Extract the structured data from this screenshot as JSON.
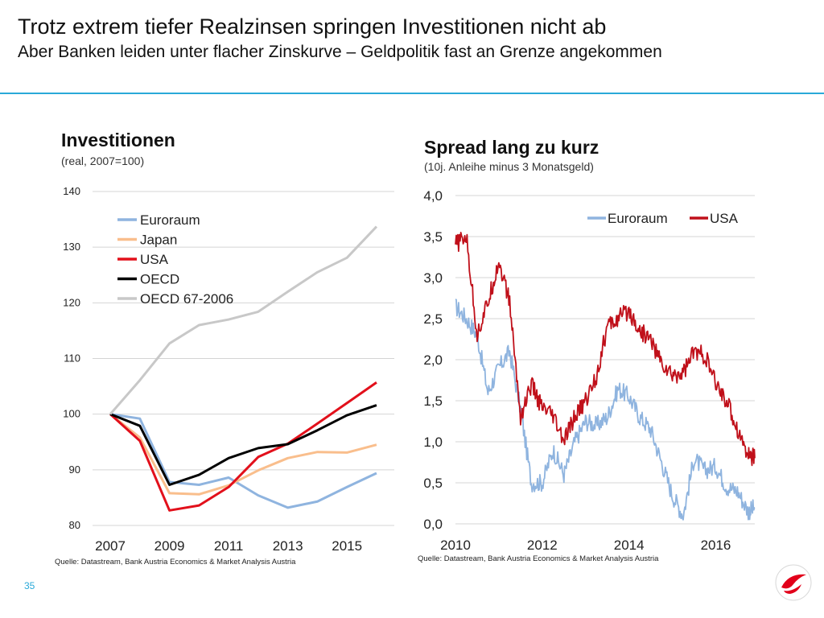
{
  "header": {
    "title": "Trotz extrem tiefer Realzinsen springen Investitionen nicht ab",
    "subtitle": "Aber Banken leiden unter flacher Zinskurve – Geldpolitik fast an Grenze angekommen"
  },
  "footer": {
    "page_number": "35"
  },
  "colors": {
    "accent": "#29a9d8",
    "euro": "#8fb4df",
    "japan": "#f9be8c",
    "usa": "#e2101b",
    "usa_spread": "#c0101a",
    "oecd": "#000000",
    "oecd_hist": "#c8c8c8",
    "logo": "#e2001a"
  },
  "chart_data": [
    {
      "type": "line",
      "title": "Investitionen",
      "subtitle": "(real, 2007=100)",
      "source": "Quelle: Datastream, Bank Austria Economics & Market Analysis Austria",
      "x": [
        2007,
        2008,
        2009,
        2010,
        2011,
        2012,
        2013,
        2014,
        2015,
        2016
      ],
      "x_tick_labels": [
        "2007",
        "2009",
        "2011",
        "2013",
        "2015"
      ],
      "ylim": [
        80,
        140
      ],
      "y_ticks": [
        80,
        90,
        100,
        110,
        120,
        130,
        140
      ],
      "legend_position": "top-left",
      "series": [
        {
          "name": "Euroraum",
          "color": "#8fb4df",
          "values": [
            100,
            99.2,
            87.8,
            87.3,
            88.6,
            85.4,
            83.2,
            84.3,
            86.9,
            89.4
          ]
        },
        {
          "name": "Japan",
          "color": "#f9be8c",
          "values": [
            100,
            95.8,
            85.8,
            85.6,
            87.2,
            89.9,
            92.1,
            93.2,
            93.1,
            94.5
          ]
        },
        {
          "name": "USA",
          "color": "#e2101b",
          "values": [
            100,
            95.2,
            82.7,
            83.6,
            86.9,
            92.3,
            94.7,
            98.3,
            102.0,
            105.7
          ]
        },
        {
          "name": "OECD",
          "color": "#000000",
          "values": [
            100,
            97.9,
            87.3,
            89.1,
            92.1,
            93.9,
            94.6,
            97.1,
            99.8,
            101.6
          ]
        },
        {
          "name": "OECD 67-2006",
          "color": "#c8c8c8",
          "values": [
            100,
            106.1,
            112.7,
            116.0,
            117.0,
            118.4,
            122.0,
            125.5,
            128.1,
            133.7
          ]
        }
      ]
    },
    {
      "type": "line",
      "title": "Spread lang zu kurz",
      "subtitle": "(10j. Anleihe minus 3 Monatsgeld)",
      "source": "Quelle: Datastream, Bank Austria Economics & Market Analysis Austria",
      "x": [
        2010.0,
        2010.25,
        2010.5,
        2010.75,
        2011.0,
        2011.25,
        2011.5,
        2011.75,
        2012.0,
        2012.25,
        2012.5,
        2012.75,
        2013.0,
        2013.25,
        2013.5,
        2013.75,
        2014.0,
        2014.25,
        2014.5,
        2014.75,
        2015.0,
        2015.25,
        2015.5,
        2015.75,
        2016.0,
        2016.25,
        2016.5,
        2016.75,
        2016.9
      ],
      "x_tick_labels": [
        "2010",
        "2012",
        "2014",
        "2016"
      ],
      "ylim": [
        0,
        4
      ],
      "y_ticks": [
        0,
        0.5,
        1.0,
        1.5,
        2.0,
        2.5,
        3.0,
        3.5,
        4.0
      ],
      "y_tick_labels": [
        "0,0",
        "0,5",
        "1,0",
        "1,5",
        "2,0",
        "2,5",
        "3,0",
        "3,5",
        "4,0"
      ],
      "legend_position": "top-right",
      "series": [
        {
          "name": "Euroraum",
          "color": "#8fb4df",
          "values": [
            2.65,
            2.5,
            2.3,
            1.6,
            1.9,
            2.1,
            1.4,
            0.5,
            0.5,
            0.9,
            0.6,
            1.0,
            1.25,
            1.2,
            1.3,
            1.65,
            1.55,
            1.3,
            1.15,
            0.75,
            0.35,
            0.1,
            0.8,
            0.65,
            0.7,
            0.45,
            0.4,
            0.15,
            0.2
          ]
        },
        {
          "name": "USA",
          "color": "#c0101a",
          "values": [
            3.4,
            3.5,
            2.3,
            2.7,
            3.2,
            2.7,
            1.3,
            1.7,
            1.4,
            1.3,
            1.0,
            1.3,
            1.5,
            1.8,
            2.4,
            2.5,
            2.6,
            2.35,
            2.25,
            1.95,
            1.8,
            1.85,
            2.1,
            2.05,
            1.7,
            1.5,
            1.15,
            0.85,
            0.8
          ]
        }
      ]
    }
  ]
}
